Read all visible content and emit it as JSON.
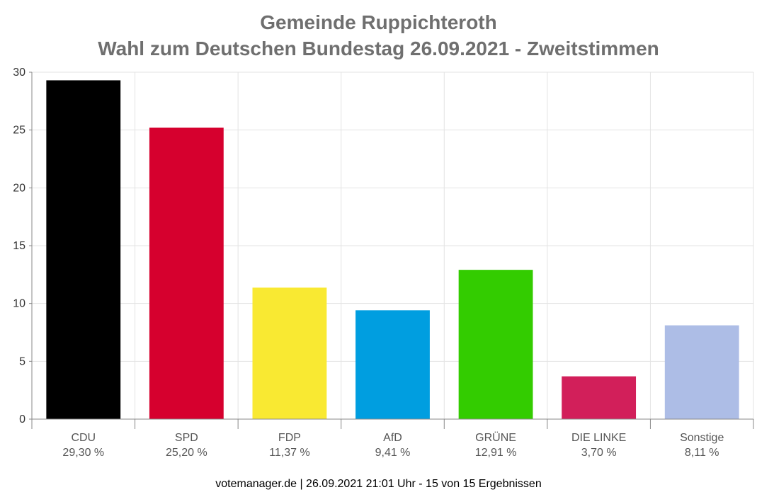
{
  "title_lines": [
    "Gemeinde Ruppichteroth",
    "Wahl zum Deutschen Bundestag 26.09.2021  - Zweitstimmen"
  ],
  "footer": "votemanager.de | 26.09.2021 21:01 Uhr - 15 von 15 Ergebnissen",
  "chart_data": {
    "type": "bar",
    "title": "Gemeinde Ruppichteroth\nWahl zum Deutschen Bundestag 26.09.2021  - Zweitstimmen",
    "xlabel": "",
    "ylabel": "",
    "ylim": [
      0,
      30
    ],
    "yticks": [
      0,
      5,
      10,
      15,
      20,
      25,
      30
    ],
    "grid": true,
    "categories": [
      "CDU",
      "SPD",
      "FDP",
      "AfD",
      "GRÜNE",
      "DIE LINKE",
      "Sonstige"
    ],
    "values": [
      29.3,
      25.2,
      11.37,
      9.41,
      12.91,
      3.7,
      8.11
    ],
    "value_labels": [
      "29,30 %",
      "25,20 %",
      "11,37 %",
      "9,41 %",
      "12,91 %",
      "3,70 %",
      "8,11 %"
    ],
    "colors": [
      "#000000",
      "#d6002e",
      "#f9e932",
      "#009ee0",
      "#33cc00",
      "#d21f5a",
      "#adbde6"
    ]
  }
}
